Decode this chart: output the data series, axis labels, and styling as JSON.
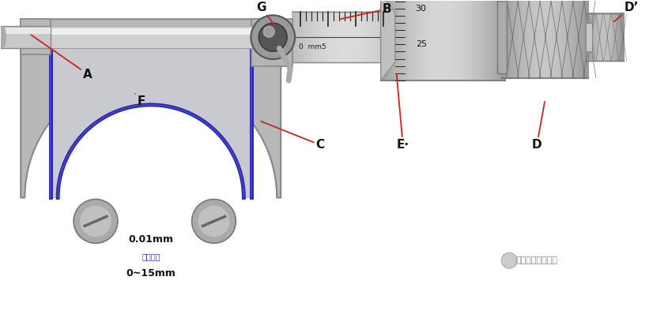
{
  "bg_color": "#ffffff",
  "body_color": "#c0c0c0",
  "body_dark": "#888888",
  "body_mid": "#aaaaaa",
  "body_light": "#e0e0e0",
  "blue_trim": "#2222aa",
  "text_body_line1": "0.01mm",
  "text_body_line2": "精度等级",
  "text_body_line3": "0~15mm",
  "watermark": "电工技术知识学习",
  "sleeve_label": "0  mm5",
  "scale_30": "30",
  "scale_25": "25",
  "label_A": "A",
  "label_B": "B",
  "label_C": "C",
  "label_D": "D",
  "label_Dp": "D’",
  "label_E": "E·",
  "label_F": "F",
  "label_G": "G",
  "figsize": [
    8.4,
    3.98
  ],
  "dpi": 100
}
